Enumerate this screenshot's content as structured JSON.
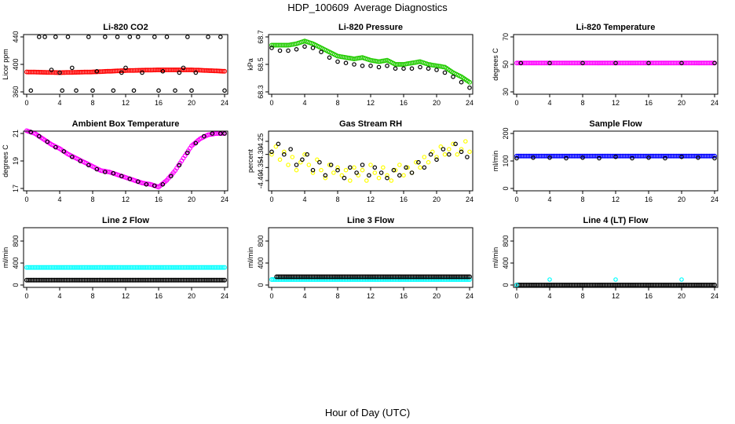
{
  "page": {
    "title": "HDP_100609  Average Diagnostics",
    "x_axis_title": "Hour of Day (UTC)"
  },
  "colors": {
    "red": "#ff0000",
    "green": "#22cc00",
    "magenta": "#ff00ff",
    "yellow": "#ffff00",
    "blue": "#0000ff",
    "cyan": "#00ffff",
    "black": "#000000"
  },
  "chart_data": [
    {
      "type": "scatter",
      "title": "Li-820 CO2",
      "ylabel": "Licor ppm",
      "xlim": [
        0,
        24
      ],
      "ylim": [
        360,
        440
      ],
      "xticks": [
        "0",
        "4",
        "8",
        "12",
        "16",
        "20",
        "24"
      ],
      "yticks": [
        "360",
        "400",
        "440"
      ],
      "yticks_at": [
        360,
        400,
        440
      ],
      "series": [
        {
          "color": "red",
          "style": "dense",
          "x": [
            0,
            4,
            8,
            12,
            16,
            20,
            24
          ],
          "y": [
            389,
            388,
            389,
            391,
            392,
            392,
            390
          ]
        },
        {
          "color": "black",
          "style": "open",
          "x": [
            0.5,
            1.5,
            2.2,
            3,
            3.5,
            4,
            4.3,
            5,
            5.5,
            6,
            7.5,
            8,
            8.5,
            9.5,
            10.5,
            11,
            11.5,
            12,
            12.5,
            13,
            13.5,
            14,
            15.5,
            16,
            16.5,
            17,
            18,
            18.5,
            19,
            19.5,
            20,
            20.5,
            22,
            23.5,
            24
          ],
          "y": [
            362,
            440,
            440,
            392,
            440,
            388,
            362,
            440,
            395,
            362,
            440,
            362,
            390,
            440,
            362,
            440,
            388,
            395,
            440,
            362,
            440,
            388,
            440,
            362,
            390,
            440,
            362,
            388,
            395,
            440,
            362,
            388,
            440,
            440,
            362
          ]
        }
      ]
    },
    {
      "type": "scatter",
      "title": "Li-820 Pressure",
      "ylabel": "kPa",
      "xlim": [
        0,
        24
      ],
      "ylim": [
        68.3,
        68.7
      ],
      "xticks": [
        "0",
        "4",
        "8",
        "12",
        "16",
        "20",
        "24"
      ],
      "yticks": [
        "68.3",
        "68.5",
        "68.7"
      ],
      "yticks_at": [
        68.3,
        68.5,
        68.7
      ],
      "series": [
        {
          "color": "green",
          "style": "dense",
          "x": [
            0,
            1,
            2,
            3,
            4,
            5,
            6,
            7,
            8,
            9,
            10,
            11,
            12,
            13,
            14,
            15,
            16,
            17,
            18,
            19,
            20,
            21,
            22,
            23,
            24
          ],
          "y": [
            68.64,
            68.64,
            68.64,
            68.65,
            68.67,
            68.65,
            68.62,
            68.59,
            68.56,
            68.55,
            68.54,
            68.55,
            68.53,
            68.52,
            68.53,
            68.5,
            68.5,
            68.51,
            68.52,
            68.5,
            68.49,
            68.48,
            68.44,
            68.41,
            68.37
          ]
        },
        {
          "color": "black",
          "style": "open",
          "x": [
            0,
            1,
            2,
            3,
            4,
            5,
            6,
            7,
            8,
            9,
            10,
            11,
            12,
            13,
            14,
            15,
            16,
            17,
            18,
            19,
            20,
            21,
            22,
            23,
            24
          ],
          "y": [
            68.62,
            68.6,
            68.6,
            68.61,
            68.63,
            68.62,
            68.59,
            68.55,
            68.52,
            68.51,
            68.5,
            68.49,
            68.49,
            68.48,
            68.49,
            68.47,
            68.47,
            68.47,
            68.48,
            68.47,
            68.46,
            68.44,
            68.41,
            68.37,
            68.33
          ]
        }
      ]
    },
    {
      "type": "scatter",
      "title": "Li-820 Temperature",
      "ylabel": "degrees C",
      "xlim": [
        0,
        24
      ],
      "ylim": [
        30,
        70
      ],
      "xticks": [
        "0",
        "4",
        "8",
        "12",
        "16",
        "20",
        "24"
      ],
      "yticks": [
        "30",
        "50",
        "70"
      ],
      "yticks_at": [
        30,
        50,
        70
      ],
      "series": [
        {
          "color": "magenta",
          "style": "dense",
          "x": [
            0,
            24
          ],
          "y": [
            51,
            51
          ]
        },
        {
          "color": "black",
          "style": "open",
          "x": [
            0.5,
            4,
            8,
            12,
            16,
            20,
            24
          ],
          "y": [
            51,
            51,
            51,
            51,
            51,
            51,
            51
          ]
        }
      ]
    },
    {
      "type": "scatter",
      "title": "Ambient Box Temperature",
      "ylabel": "degrees C",
      "xlim": [
        0,
        24
      ],
      "ylim": [
        17,
        21
      ],
      "xticks": [
        "0",
        "4",
        "8",
        "12",
        "16",
        "20",
        "24"
      ],
      "yticks": [
        "17",
        "19",
        "21"
      ],
      "yticks_at": [
        17,
        19,
        21
      ],
      "series": [
        {
          "color": "magenta",
          "style": "dense",
          "x": [
            0,
            1,
            2,
            3,
            4,
            5,
            6,
            7,
            8,
            9,
            10,
            11,
            12,
            13,
            14,
            15,
            16,
            17,
            18,
            19,
            20,
            21,
            22,
            23,
            24
          ],
          "y": [
            21.2,
            21.0,
            20.6,
            20.2,
            19.9,
            19.5,
            19.2,
            18.9,
            18.6,
            18.3,
            18.2,
            18.0,
            17.8,
            17.6,
            17.4,
            17.3,
            17.1,
            17.6,
            18.3,
            19.2,
            20.1,
            20.6,
            20.9,
            21.0,
            21.0
          ]
        },
        {
          "color": "black",
          "style": "open",
          "x": [
            0.5,
            1.5,
            2.5,
            3.5,
            4.5,
            5.5,
            6.5,
            7.5,
            8.5,
            9.5,
            10.5,
            11.5,
            12.5,
            13.5,
            14.5,
            15.5,
            16.5,
            17.5,
            18.5,
            19.5,
            20.5,
            21.5,
            22.5,
            23.5,
            24
          ],
          "y": [
            21.1,
            20.8,
            20.4,
            20.0,
            19.7,
            19.3,
            19.0,
            18.7,
            18.4,
            18.2,
            18.1,
            17.9,
            17.7,
            17.5,
            17.3,
            17.2,
            17.3,
            17.9,
            18.7,
            19.6,
            20.3,
            20.8,
            21.0,
            21.0,
            21.0
          ]
        }
      ]
    },
    {
      "type": "scatter",
      "title": "Gas Stream RH",
      "ylabel": "percent",
      "xlim": [
        0,
        24
      ],
      "ylim": [
        -4.43,
        -4.22
      ],
      "xticks": [
        "0",
        "4",
        "8",
        "12",
        "16",
        "20",
        "24"
      ],
      "yticks": [
        "-4.40",
        "-4.35",
        "-4.30",
        "-4.25"
      ],
      "yticks_at": [
        -4.4,
        -4.35,
        -4.3,
        -4.25
      ],
      "series": [
        {
          "color": "yellow",
          "style": "scatter",
          "x": [
            0,
            0.5,
            1,
            1.5,
            2,
            2.5,
            3,
            3.5,
            4,
            4.5,
            5,
            5.5,
            6,
            6.5,
            7,
            7.5,
            8,
            8.5,
            9,
            9.5,
            10,
            10.5,
            11,
            11.5,
            12,
            12.5,
            13,
            13.5,
            14,
            14.5,
            15,
            15.5,
            16,
            16.5,
            17,
            17.5,
            18,
            18.5,
            19,
            19.5,
            20,
            20.5,
            21,
            21.5,
            22,
            22.5,
            23,
            23.5,
            24
          ],
          "y": [
            -4.3,
            -4.27,
            -4.32,
            -4.29,
            -4.34,
            -4.31,
            -4.36,
            -4.33,
            -4.3,
            -4.34,
            -4.37,
            -4.32,
            -4.36,
            -4.39,
            -4.34,
            -4.37,
            -4.35,
            -4.38,
            -4.36,
            -4.4,
            -4.35,
            -4.38,
            -4.36,
            -4.4,
            -4.34,
            -4.37,
            -4.39,
            -4.35,
            -4.38,
            -4.4,
            -4.36,
            -4.34,
            -4.38,
            -4.35,
            -4.37,
            -4.33,
            -4.35,
            -4.31,
            -4.33,
            -4.29,
            -4.31,
            -4.27,
            -4.3,
            -4.28,
            -4.26,
            -4.3,
            -4.28,
            -4.25,
            -4.29
          ]
        },
        {
          "color": "black",
          "style": "open",
          "x": [
            0,
            0.8,
            1.5,
            2.3,
            3,
            3.7,
            4.3,
            5,
            5.8,
            6.5,
            7.2,
            8,
            8.8,
            9.5,
            10.3,
            11,
            11.8,
            12.5,
            13.3,
            14,
            14.8,
            15.5,
            16.3,
            17,
            17.8,
            18.5,
            19.3,
            20,
            20.8,
            21.5,
            22.3,
            23,
            23.7
          ],
          "y": [
            -4.29,
            -4.26,
            -4.3,
            -4.28,
            -4.34,
            -4.32,
            -4.3,
            -4.36,
            -4.33,
            -4.38,
            -4.34,
            -4.36,
            -4.39,
            -4.35,
            -4.37,
            -4.34,
            -4.38,
            -4.35,
            -4.37,
            -4.39,
            -4.36,
            -4.38,
            -4.35,
            -4.37,
            -4.33,
            -4.35,
            -4.3,
            -4.32,
            -4.28,
            -4.3,
            -4.26,
            -4.29,
            -4.31
          ]
        }
      ]
    },
    {
      "type": "scatter",
      "title": "Sample Flow",
      "ylabel": "ml/min",
      "xlim": [
        0,
        24
      ],
      "ylim": [
        0,
        200
      ],
      "xticks": [
        "0",
        "4",
        "8",
        "12",
        "16",
        "20",
        "24"
      ],
      "yticks": [
        "0",
        "100",
        "200"
      ],
      "yticks_at": [
        0,
        100,
        200
      ],
      "series": [
        {
          "color": "blue",
          "style": "dense",
          "x": [
            0,
            24
          ],
          "y": [
            118,
            118
          ]
        },
        {
          "color": "black",
          "style": "open",
          "x": [
            0,
            2,
            4,
            6,
            8,
            10,
            12,
            14,
            16,
            18,
            20,
            22,
            24
          ],
          "y": [
            110,
            112,
            112,
            110,
            112,
            110,
            115,
            110,
            112,
            110,
            115,
            112,
            110
          ]
        }
      ]
    },
    {
      "type": "scatter",
      "title": "Line 2 Flow",
      "ylabel": "ml/min",
      "xlim": [
        0,
        24
      ],
      "ylim": [
        0,
        1000
      ],
      "xticks": [
        "0",
        "4",
        "8",
        "12",
        "16",
        "20",
        "24"
      ],
      "yticks": [
        "0",
        "400",
        "800"
      ],
      "yticks_at": [
        0,
        400,
        800
      ],
      "series": [
        {
          "color": "cyan",
          "style": "dense",
          "x": [
            0,
            24
          ],
          "y": [
            320,
            320
          ]
        },
        {
          "color": "black",
          "style": "dense",
          "x": [
            0,
            24
          ],
          "y": [
            90,
            90
          ]
        }
      ]
    },
    {
      "type": "scatter",
      "title": "Line 3 Flow",
      "ylabel": "ml/min",
      "xlim": [
        0,
        24
      ],
      "ylim": [
        0,
        1000
      ],
      "xticks": [
        "0",
        "4",
        "8",
        "12",
        "16",
        "20",
        "24"
      ],
      "yticks": [
        "0",
        "400",
        "800"
      ],
      "yticks_at": [
        0,
        400,
        800
      ],
      "series": [
        {
          "color": "cyan",
          "style": "dense",
          "x": [
            0,
            24
          ],
          "y": [
            100,
            100
          ]
        },
        {
          "color": "black",
          "style": "dense",
          "x": [
            0.5,
            24
          ],
          "y": [
            150,
            150
          ]
        }
      ]
    },
    {
      "type": "scatter",
      "title": "Line 4 (LT) Flow",
      "ylabel": "ml/min",
      "xlim": [
        0,
        24
      ],
      "ylim": [
        0,
        1000
      ],
      "xticks": [
        "0",
        "4",
        "8",
        "12",
        "16",
        "20",
        "24"
      ],
      "yticks": [
        "0",
        "400",
        "800"
      ],
      "yticks_at": [
        0,
        400,
        800
      ],
      "series": [
        {
          "color": "black",
          "style": "dense",
          "x": [
            0,
            24
          ],
          "y": [
            0,
            0
          ]
        },
        {
          "color": "cyan",
          "style": "scatter",
          "x": [
            0,
            4,
            12,
            20
          ],
          "y": [
            0,
            100,
            100,
            100
          ]
        }
      ]
    }
  ]
}
